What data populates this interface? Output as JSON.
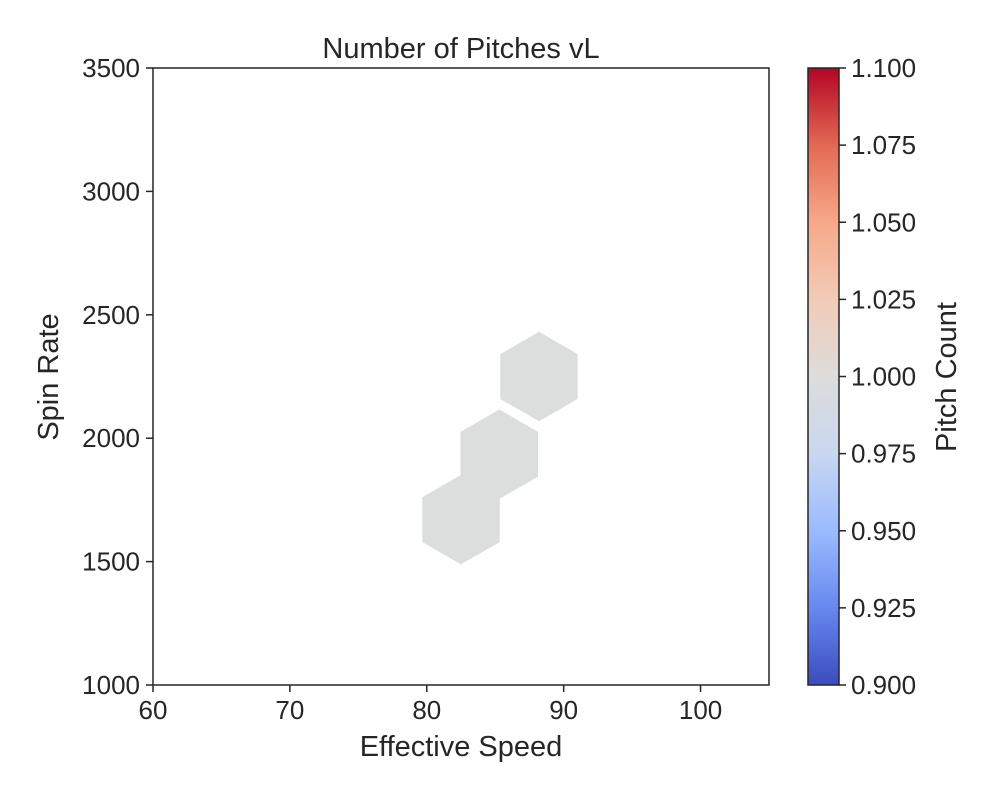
{
  "chart_data": {
    "type": "heatmap",
    "subtype": "hexbin",
    "title": "Number of Pitches vL",
    "xlabel": "Effective Speed",
    "ylabel": "Spin Rate",
    "xlim": [
      60,
      105
    ],
    "ylim": [
      1000,
      3500
    ],
    "xticks": [
      "60",
      "70",
      "80",
      "90",
      "100"
    ],
    "yticks": [
      "1000",
      "1500",
      "2000",
      "2500",
      "3000",
      "3500"
    ],
    "grid": false,
    "colormap": "coolwarm",
    "colorbar": {
      "label": "Pitch Count",
      "range": [
        0.9,
        1.1
      ],
      "ticks": [
        "0.900",
        "0.925",
        "0.950",
        "0.975",
        "1.000",
        "1.025",
        "1.050",
        "1.075",
        "1.100"
      ],
      "colors": [
        "#3b4cc0",
        "#6788ee",
        "#9abbff",
        "#c9d7f0",
        "#dddcdc",
        "#f2cbb7",
        "#f7a889",
        "#e26952",
        "#b40426"
      ]
    },
    "cells": [
      {
        "x": 82.5,
        "y": 1670,
        "count": 1
      },
      {
        "x": 85.3,
        "y": 1935,
        "count": 1
      },
      {
        "x": 88.2,
        "y": 2250,
        "count": 1
      }
    ],
    "cell_color": "#dcdddd"
  }
}
